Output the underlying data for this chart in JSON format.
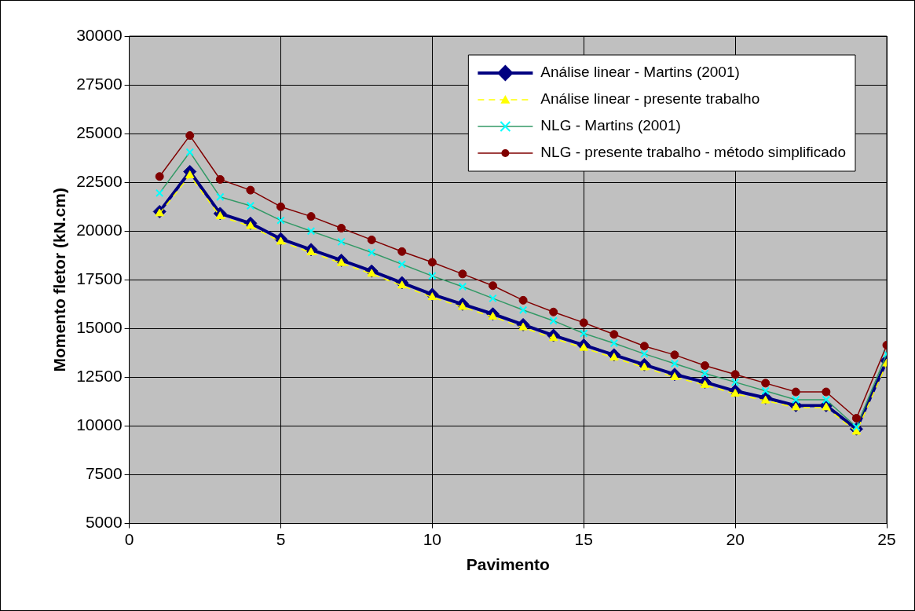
{
  "chart_data": {
    "type": "line",
    "xlabel": "Pavimento",
    "ylabel": "Momento fletor (kN.cm)",
    "x": [
      1,
      2,
      3,
      4,
      5,
      6,
      7,
      8,
      9,
      10,
      11,
      12,
      13,
      14,
      15,
      16,
      17,
      18,
      19,
      20,
      21,
      22,
      23,
      24,
      25
    ],
    "xlim": [
      0,
      25
    ],
    "xticks": [
      0,
      5,
      10,
      15,
      20,
      25
    ],
    "ylim": [
      5000,
      30000
    ],
    "yticks": [
      5000,
      7500,
      10000,
      12500,
      15000,
      17500,
      20000,
      22500,
      25000,
      27500,
      30000
    ],
    "grid": true,
    "legend": "top right",
    "series": [
      {
        "name": "Análise linear - Martins (2001)",
        "color": "#000080",
        "marker": "diamond",
        "line_style": "solid",
        "values": [
          21000,
          23050,
          20900,
          20400,
          19600,
          19050,
          18500,
          17950,
          17350,
          16750,
          16250,
          15750,
          15200,
          14650,
          14150,
          13650,
          13150,
          12650,
          12250,
          11800,
          11450,
          11050,
          11050,
          9850,
          13350
        ]
      },
      {
        "name": "Análise linear - presente trabalho",
        "color": "#ffff00",
        "marker": "triangle",
        "line_style": "dashed",
        "values": [
          20900,
          22850,
          20750,
          20250,
          19450,
          18900,
          18350,
          17800,
          17200,
          16600,
          16100,
          15600,
          15050,
          14500,
          14000,
          13500,
          13000,
          12500,
          12100,
          11650,
          11300,
          10950,
          10950,
          9700,
          13200
        ]
      },
      {
        "name": "NLG - Martins (2001)",
        "color": "#339966",
        "marker": "cross",
        "line_style": "solid",
        "values": [
          21950,
          24050,
          21750,
          21300,
          20550,
          20000,
          19450,
          18900,
          18300,
          17700,
          17150,
          16550,
          15950,
          15400,
          14750,
          14250,
          13700,
          13200,
          12700,
          12250,
          11800,
          11350,
          11350,
          9950,
          13700
        ]
      },
      {
        "name": "NLG - presente trabalho - método simplificado",
        "color": "#800000",
        "marker": "circle",
        "line_style": "solid",
        "values": [
          22800,
          24900,
          22650,
          22100,
          21250,
          20750,
          20150,
          19550,
          18950,
          18400,
          17800,
          17200,
          16450,
          15850,
          15300,
          14700,
          14100,
          13650,
          13100,
          12650,
          12200,
          11750,
          11750,
          10400,
          14150
        ]
      }
    ]
  }
}
